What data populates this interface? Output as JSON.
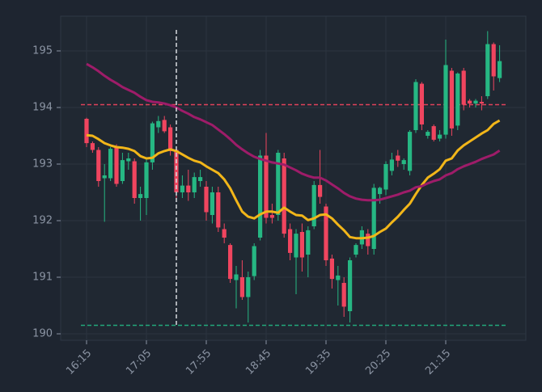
{
  "chart_data": {
    "type": "candlestick",
    "categories": [
      "16:15",
      null,
      null,
      null,
      null,
      null,
      null,
      null,
      null,
      null,
      "17:05",
      null,
      null,
      null,
      null,
      null,
      null,
      null,
      null,
      null,
      "17:55",
      null,
      null,
      null,
      null,
      null,
      null,
      null,
      null,
      null,
      "18:45",
      null,
      null,
      null,
      null,
      null,
      null,
      null,
      null,
      null,
      "19:35",
      null,
      null,
      null,
      null,
      null,
      null,
      null,
      null,
      null,
      "20:25",
      null,
      null,
      null,
      null,
      null,
      null,
      null,
      null,
      null,
      "21:15",
      null,
      null,
      null,
      null,
      null,
      null,
      null,
      null,
      null
    ],
    "open": [
      193.8,
      193.37,
      193.25,
      192.75,
      192.75,
      193.3,
      192.7,
      193.05,
      193.05,
      192.4,
      192.4,
      193.03,
      193.65,
      193.78,
      193.65,
      193.25,
      192.5,
      192.62,
      192.5,
      192.7,
      192.6,
      192.1,
      192.5,
      191.85,
      191.57,
      190.95,
      191.0,
      190.65,
      191.02,
      191.7,
      193.15,
      192.1,
      192.1,
      193.1,
      191.85,
      191.35,
      191.8,
      191.4,
      191.9,
      192.63,
      192.25,
      191.33,
      190.95,
      190.9,
      190.4,
      191.4,
      191.58,
      191.77,
      191.5,
      192.47,
      192.55,
      192.88,
      193.15,
      193.0,
      192.88,
      193.6,
      194.42,
      193.5,
      193.67,
      193.45,
      193.52,
      194.65,
      193.68,
      194.65,
      194.12,
      194.07,
      194.1,
      194.2,
      195.12,
      194.52
    ],
    "high": [
      193.82,
      193.4,
      193.3,
      193.0,
      193.3,
      193.35,
      193.2,
      193.2,
      193.1,
      192.6,
      193.1,
      193.75,
      193.85,
      193.85,
      193.7,
      193.3,
      192.8,
      192.9,
      192.85,
      192.9,
      192.7,
      192.6,
      192.6,
      191.95,
      191.6,
      191.2,
      191.3,
      191.1,
      191.6,
      193.25,
      193.55,
      192.3,
      193.25,
      193.2,
      191.95,
      191.85,
      191.95,
      191.9,
      192.7,
      193.25,
      192.3,
      191.4,
      191.2,
      191.0,
      191.35,
      191.6,
      191.9,
      191.85,
      192.65,
      192.6,
      193.05,
      193.2,
      193.25,
      193.1,
      193.6,
      194.5,
      194.45,
      193.6,
      193.7,
      193.6,
      195.2,
      194.7,
      194.62,
      194.7,
      194.15,
      194.15,
      194.2,
      195.35,
      195.15,
      195.1
    ],
    "low": [
      193.3,
      193.2,
      192.6,
      191.98,
      192.7,
      192.6,
      192.65,
      192.9,
      192.3,
      192.0,
      192.1,
      192.9,
      193.55,
      193.55,
      193.15,
      192.4,
      192.4,
      192.35,
      192.4,
      192.6,
      192.0,
      191.95,
      191.8,
      191.6,
      190.9,
      190.45,
      190.6,
      190.2,
      190.95,
      191.65,
      191.95,
      191.95,
      192.0,
      191.7,
      191.3,
      190.7,
      191.1,
      191.0,
      191.85,
      192.3,
      191.2,
      190.8,
      190.5,
      190.3,
      190.2,
      191.35,
      191.5,
      191.4,
      191.4,
      192.3,
      192.45,
      192.8,
      192.95,
      192.9,
      192.8,
      193.55,
      193.6,
      193.45,
      193.4,
      193.4,
      193.45,
      193.5,
      193.6,
      193.95,
      194.0,
      194.0,
      193.95,
      194.15,
      194.3,
      194.45
    ],
    "close": [
      193.37,
      193.25,
      192.7,
      192.8,
      193.27,
      192.65,
      193.07,
      193.1,
      192.4,
      192.47,
      193.03,
      193.72,
      193.76,
      193.58,
      193.23,
      192.5,
      192.62,
      192.5,
      192.77,
      192.77,
      192.15,
      192.5,
      191.88,
      191.7,
      190.97,
      191.05,
      190.65,
      191.0,
      191.55,
      193.15,
      192.05,
      192.05,
      193.2,
      191.77,
      191.43,
      191.77,
      191.35,
      191.83,
      192.63,
      192.42,
      191.3,
      190.97,
      191.03,
      190.48,
      191.3,
      191.57,
      191.83,
      191.55,
      192.58,
      192.58,
      193.0,
      193.08,
      193.06,
      193.07,
      193.57,
      194.45,
      193.7,
      193.57,
      193.43,
      193.52,
      194.75,
      193.63,
      194.6,
      194.05,
      194.07,
      194.12,
      194.07,
      195.12,
      194.55,
      194.82
    ],
    "up_color": "#26b783",
    "down_color": "#f0455f",
    "series": [
      {
        "color": "#f2b619",
        "values": [
          193.51,
          193.5,
          193.44,
          193.37,
          193.33,
          193.3,
          193.29,
          193.27,
          193.23,
          193.14,
          193.1,
          193.11,
          193.19,
          193.23,
          193.26,
          193.23,
          193.17,
          193.11,
          193.06,
          193.03,
          192.96,
          192.9,
          192.84,
          192.73,
          192.57,
          192.36,
          192.16,
          192.07,
          192.04,
          192.11,
          192.16,
          192.16,
          192.14,
          192.23,
          192.16,
          192.1,
          192.09,
          192.01,
          192.04,
          192.1,
          192.11,
          192.04,
          191.93,
          191.83,
          191.71,
          191.69,
          191.69,
          191.7,
          191.73,
          191.8,
          191.86,
          191.97,
          192.07,
          192.19,
          192.3,
          192.47,
          192.63,
          192.76,
          192.83,
          192.91,
          193.06,
          193.1,
          193.24,
          193.33,
          193.4,
          193.47,
          193.54,
          193.6,
          193.71,
          193.77
        ]
      },
      {
        "color": "#9e1c69",
        "values": [
          194.77,
          194.71,
          194.64,
          194.56,
          194.49,
          194.43,
          194.36,
          194.31,
          194.26,
          194.19,
          194.13,
          194.1,
          194.09,
          194.07,
          194.04,
          194.0,
          193.94,
          193.89,
          193.83,
          193.79,
          193.74,
          193.69,
          193.61,
          193.53,
          193.44,
          193.34,
          193.26,
          193.19,
          193.13,
          193.09,
          193.06,
          193.03,
          193.01,
          192.99,
          192.94,
          192.89,
          192.83,
          192.79,
          192.76,
          192.76,
          192.71,
          192.64,
          192.57,
          192.49,
          192.43,
          192.39,
          192.37,
          192.36,
          192.36,
          192.37,
          192.4,
          192.43,
          192.46,
          192.5,
          192.53,
          192.59,
          192.61,
          192.66,
          192.7,
          192.73,
          192.8,
          192.84,
          192.91,
          192.96,
          193.0,
          193.04,
          193.09,
          193.13,
          193.17,
          193.24
        ]
      }
    ],
    "hlines": [
      {
        "value": 194.05,
        "color": "#e0435a"
      },
      {
        "value": 190.15,
        "color": "#23a87a"
      }
    ],
    "crosshair_index": 15,
    "ylim": [
      189.886,
      195.614
    ],
    "yticks": [
      190,
      191,
      192,
      193,
      194,
      195
    ],
    "grid": true
  }
}
